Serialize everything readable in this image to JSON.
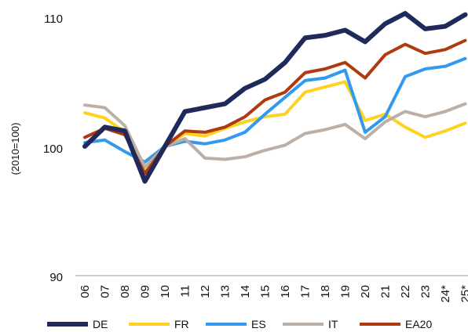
{
  "chart_data": {
    "type": "line",
    "ylabel": "(2010=100)",
    "ylim": [
      90,
      110
    ],
    "yticks": [
      "90",
      "100",
      "110"
    ],
    "categories": [
      "06",
      "07",
      "08",
      "09",
      "10",
      "11",
      "12",
      "13",
      "14",
      "15",
      "16",
      "17",
      "18",
      "19",
      "20",
      "21",
      "22",
      "23",
      "24*",
      "25*"
    ],
    "grid": false,
    "legend": "bottom",
    "series": [
      {
        "name": "DE",
        "color": "#1f2a5a",
        "values": [
          100.0,
          101.5,
          101.2,
          97.3,
          100.0,
          102.7,
          103.0,
          103.3,
          104.5,
          105.2,
          106.5,
          108.4,
          108.6,
          109.0,
          108.1,
          109.5,
          110.3,
          109.1,
          109.3,
          110.2
        ]
      },
      {
        "name": "FR",
        "color": "#ffd21f",
        "values": [
          102.6,
          102.2,
          101.1,
          98.1,
          100.0,
          101.0,
          100.8,
          101.4,
          101.9,
          102.3,
          102.5,
          104.2,
          104.6,
          105.0,
          102.0,
          102.5,
          101.5,
          100.7,
          101.2,
          101.8
        ]
      },
      {
        "name": "ES",
        "color": "#3399ee",
        "values": [
          100.3,
          100.5,
          99.6,
          98.8,
          100.0,
          100.4,
          100.2,
          100.5,
          101.1,
          102.5,
          103.8,
          105.1,
          105.3,
          105.9,
          101.1,
          102.3,
          105.4,
          106.0,
          106.2,
          106.8
        ]
      },
      {
        "name": "IT",
        "color": "#bbb0a8",
        "values": [
          103.2,
          103.0,
          101.6,
          98.4,
          100.0,
          100.6,
          99.1,
          99.0,
          99.2,
          99.7,
          100.1,
          101.0,
          101.3,
          101.7,
          100.6,
          101.9,
          102.7,
          102.3,
          102.7,
          103.3
        ]
      },
      {
        "name": "EA20",
        "color": "#b03a10",
        "values": [
          100.7,
          101.4,
          100.9,
          97.9,
          100.0,
          101.2,
          101.1,
          101.5,
          102.3,
          103.6,
          104.2,
          105.7,
          106.0,
          106.5,
          105.3,
          107.1,
          107.9,
          107.2,
          107.5,
          108.2
        ]
      }
    ]
  }
}
